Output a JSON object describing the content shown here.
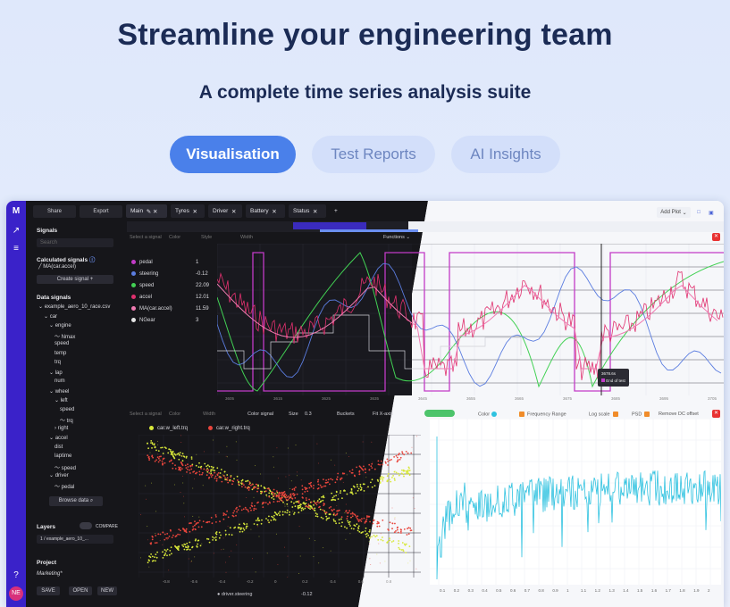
{
  "hero": {
    "title": "Streamline your engineering team",
    "subtitle": "A complete time series analysis suite",
    "tabs": [
      {
        "label": "Visualisation"
      },
      {
        "label": "Test Reports"
      },
      {
        "label": "AI Insights"
      }
    ]
  },
  "app": {
    "toolbar": {
      "share": "Share",
      "export": "Export",
      "tabs": [
        "Main",
        "Tyres",
        "Driver",
        "Battery",
        "Status"
      ],
      "add_plot": "Add Plot",
      "functions": "Functions"
    },
    "sidebar": {
      "signals_heading": "Signals",
      "search_placeholder": "Search",
      "calculated_heading": "Calculated signals",
      "calculated_item": "MA(car.accel)",
      "create_signal": "Create signal",
      "data_heading": "Data signals",
      "tree": [
        "example_aero_10_race.csv",
        "car",
        "engine",
        "Nmax",
        "speed",
        "temp",
        "trq",
        "lap",
        "num",
        "wheel",
        "left",
        "speed",
        "trq",
        "right",
        "accel",
        "dist",
        "laptime",
        "speed",
        "driver",
        "pedal"
      ],
      "browse": "Browse data",
      "layers_heading": "Layers",
      "compare": "COMPARE",
      "layer_item": "1 / example_aero_10_...",
      "project_heading": "Project",
      "project_name": "Marketing*",
      "save": "SAVE",
      "open": "OPEN",
      "new": "NEW",
      "avatar": "NE"
    },
    "top_legend": [
      {
        "name": "pedal",
        "value": "1",
        "color": "#c23bc7"
      },
      {
        "name": "steering",
        "value": "-0.12",
        "color": "#5b7de0"
      },
      {
        "name": "speed",
        "value": "22.09",
        "color": "#42d154"
      },
      {
        "name": "accel",
        "value": "12.01",
        "color": "#e0306e"
      },
      {
        "name": "MA(car.accel)",
        "value": "11.59",
        "color": "#f07bb2"
      },
      {
        "name": "NGear",
        "value": "3",
        "color": "#e6e6e6"
      }
    ],
    "top_controls": {
      "select_signal": "Select a signal",
      "color": "Color",
      "style": "Style",
      "width": "Width"
    },
    "tooltip": {
      "time": "3678.6s",
      "label": "End of test"
    },
    "top_x_ticks": [
      "3605",
      "3615",
      "3625",
      "3635",
      "3645",
      "3655",
      "3665",
      "3675",
      "3685",
      "3695",
      "3705"
    ],
    "scatter": {
      "legend": [
        "car.w_left.trq",
        "car.w_right.trq"
      ],
      "colors": [
        "#d8e83a",
        "#e8453c"
      ],
      "controls": {
        "select_signal": "Select a signal",
        "color": "Color",
        "width": "Width",
        "color_signal": "Color signal",
        "size": "Size",
        "size_value": "0.3",
        "buckets": "Buckets",
        "fit": "Fit X-axis"
      },
      "x_ticks": [
        "-0.8",
        "-0.6",
        "-0.4",
        "-0.2",
        "0",
        "0.2",
        "0.4",
        "0.6",
        "0.8"
      ],
      "footer_signal": "driver.steering",
      "footer_value": "-0.12"
    },
    "spectrum": {
      "controls": {
        "color": "Color",
        "frequency_range": "Frequency Range",
        "log_scale": "Log scale",
        "psd": "PSD",
        "remove_dc": "Remove DC offset"
      },
      "x_ticks": [
        "0.1",
        "0.2",
        "0.3",
        "0.4",
        "0.5",
        "0.6",
        "0.7",
        "0.8",
        "0.9",
        "1",
        "1.1",
        "1.2",
        "1.3",
        "1.4",
        "1.5",
        "1.6",
        "1.7",
        "1.8",
        "1.9",
        "2"
      ],
      "color": "#2fc2e0"
    }
  }
}
